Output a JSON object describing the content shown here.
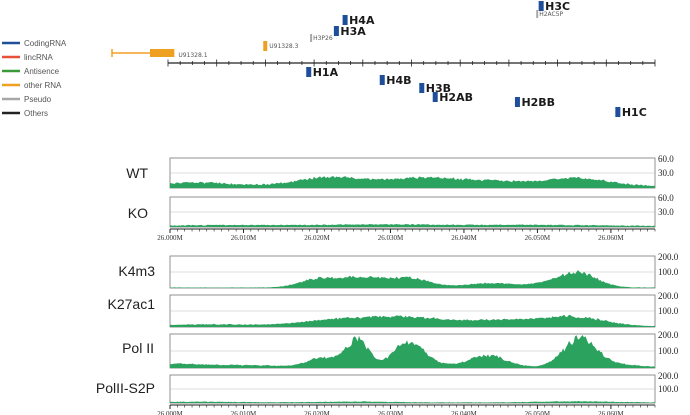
{
  "legend": [
    {
      "label": "CodingRNA",
      "color": "#1f4e9a"
    },
    {
      "label": "lincRNA",
      "color": "#e8503a"
    },
    {
      "label": "Antisence",
      "color": "#3a9a3a"
    },
    {
      "label": "other RNA",
      "color": "#f0a020"
    },
    {
      "label": "Pseudo",
      "color": "#a8a8a8"
    },
    {
      "label": "Others",
      "color": "#222222"
    }
  ],
  "genes": {
    "coding": [
      {
        "name": "H4A",
        "pos": 26.0224,
        "row": "up1"
      },
      {
        "name": "H3A",
        "pos": 26.0213,
        "row": "up2"
      },
      {
        "name": "H3C",
        "pos": 26.0472,
        "row": "up0"
      },
      {
        "name": "H1A",
        "pos": 26.0178,
        "row": "dn1"
      },
      {
        "name": "H4B",
        "pos": 26.0271,
        "row": "dn2"
      },
      {
        "name": "H3B",
        "pos": 26.0321,
        "row": "dn3"
      },
      {
        "name": "H2AB",
        "pos": 26.0338,
        "row": "dn4"
      },
      {
        "name": "H2BB",
        "pos": 26.0442,
        "row": "dn5"
      },
      {
        "name": "H1C",
        "pos": 26.0569,
        "row": "dn6"
      }
    ],
    "pseudo": [
      {
        "name": "H2AC5P",
        "pos": 26.0467
      },
      {
        "name": "H3P26",
        "pos": 26.0181
      }
    ],
    "other": [
      {
        "name": "U91328.3",
        "pos": 26.0123
      },
      {
        "name": "U91328.1",
        "start": 25.9895,
        "end": 26.0008
      }
    ]
  },
  "axis_ticks": [
    "26.000M",
    "26.010M",
    "26.020M",
    "26.030M",
    "26.040M",
    "26.050M",
    "26.060M"
  ],
  "signal_color": "#2ca25f",
  "tracks": [
    {
      "label": "WT",
      "scale": [
        "60.0",
        "30.0"
      ],
      "max": 60,
      "base": 4,
      "peaks": [
        [
          26.003,
          7,
          5
        ],
        [
          26.02,
          11,
          4
        ],
        [
          26.024,
          9,
          4
        ],
        [
          26.033,
          13,
          4
        ],
        [
          26.04,
          8,
          5
        ],
        [
          26.046,
          5,
          5
        ],
        [
          26.0555,
          15,
          4
        ]
      ]
    },
    {
      "label": "KO",
      "scale": [
        "60.0",
        "30.0"
      ],
      "max": 60,
      "base": 2,
      "peaks": [
        [
          26.01,
          2,
          8
        ],
        [
          26.03,
          3,
          8
        ],
        [
          26.05,
          2,
          8
        ]
      ]
    },
    {
      "label": "K4m3",
      "scale": [
        "200.0",
        "100.0"
      ],
      "max": 200,
      "base": 3,
      "peaks": [
        [
          26.02,
          55,
          2.5
        ],
        [
          26.0256,
          58,
          2.5
        ],
        [
          26.032,
          62,
          3
        ],
        [
          26.0433,
          28,
          3
        ],
        [
          26.0518,
          25,
          3
        ],
        [
          26.0555,
          85,
          2.5
        ]
      ]
    },
    {
      "label": "K27ac1",
      "scale": [
        "200.0",
        "100.0"
      ],
      "max": 200,
      "base": 5,
      "peaks": [
        [
          26.0055,
          12,
          6
        ],
        [
          26.02,
          25,
          4
        ],
        [
          26.026,
          35,
          4
        ],
        [
          26.0325,
          45,
          4
        ],
        [
          26.042,
          30,
          5
        ],
        [
          26.048,
          20,
          4
        ],
        [
          26.055,
          55,
          4
        ]
      ]
    },
    {
      "label": "Pol II",
      "scale": [
        "200.0",
        "100.0"
      ],
      "max": 200,
      "base": 5,
      "peaks": [
        [
          26.001,
          18,
          3
        ],
        [
          26.01,
          12,
          5
        ],
        [
          26.0205,
          55,
          2
        ],
        [
          26.0253,
          160,
          1.6
        ],
        [
          26.031,
          80,
          1.5
        ],
        [
          26.033,
          95,
          1.5
        ],
        [
          26.035,
          30,
          2
        ],
        [
          26.043,
          70,
          2.5
        ],
        [
          26.0555,
          165,
          2.2
        ],
        [
          26.06,
          18,
          3
        ]
      ]
    },
    {
      "label": "PolII-S2P",
      "scale": [
        "200.0",
        "100.0"
      ],
      "max": 200,
      "base": 4,
      "peaks": [
        [
          26.003,
          5,
          6
        ],
        [
          26.025,
          6,
          5
        ],
        [
          26.055,
          8,
          5
        ]
      ]
    }
  ]
}
